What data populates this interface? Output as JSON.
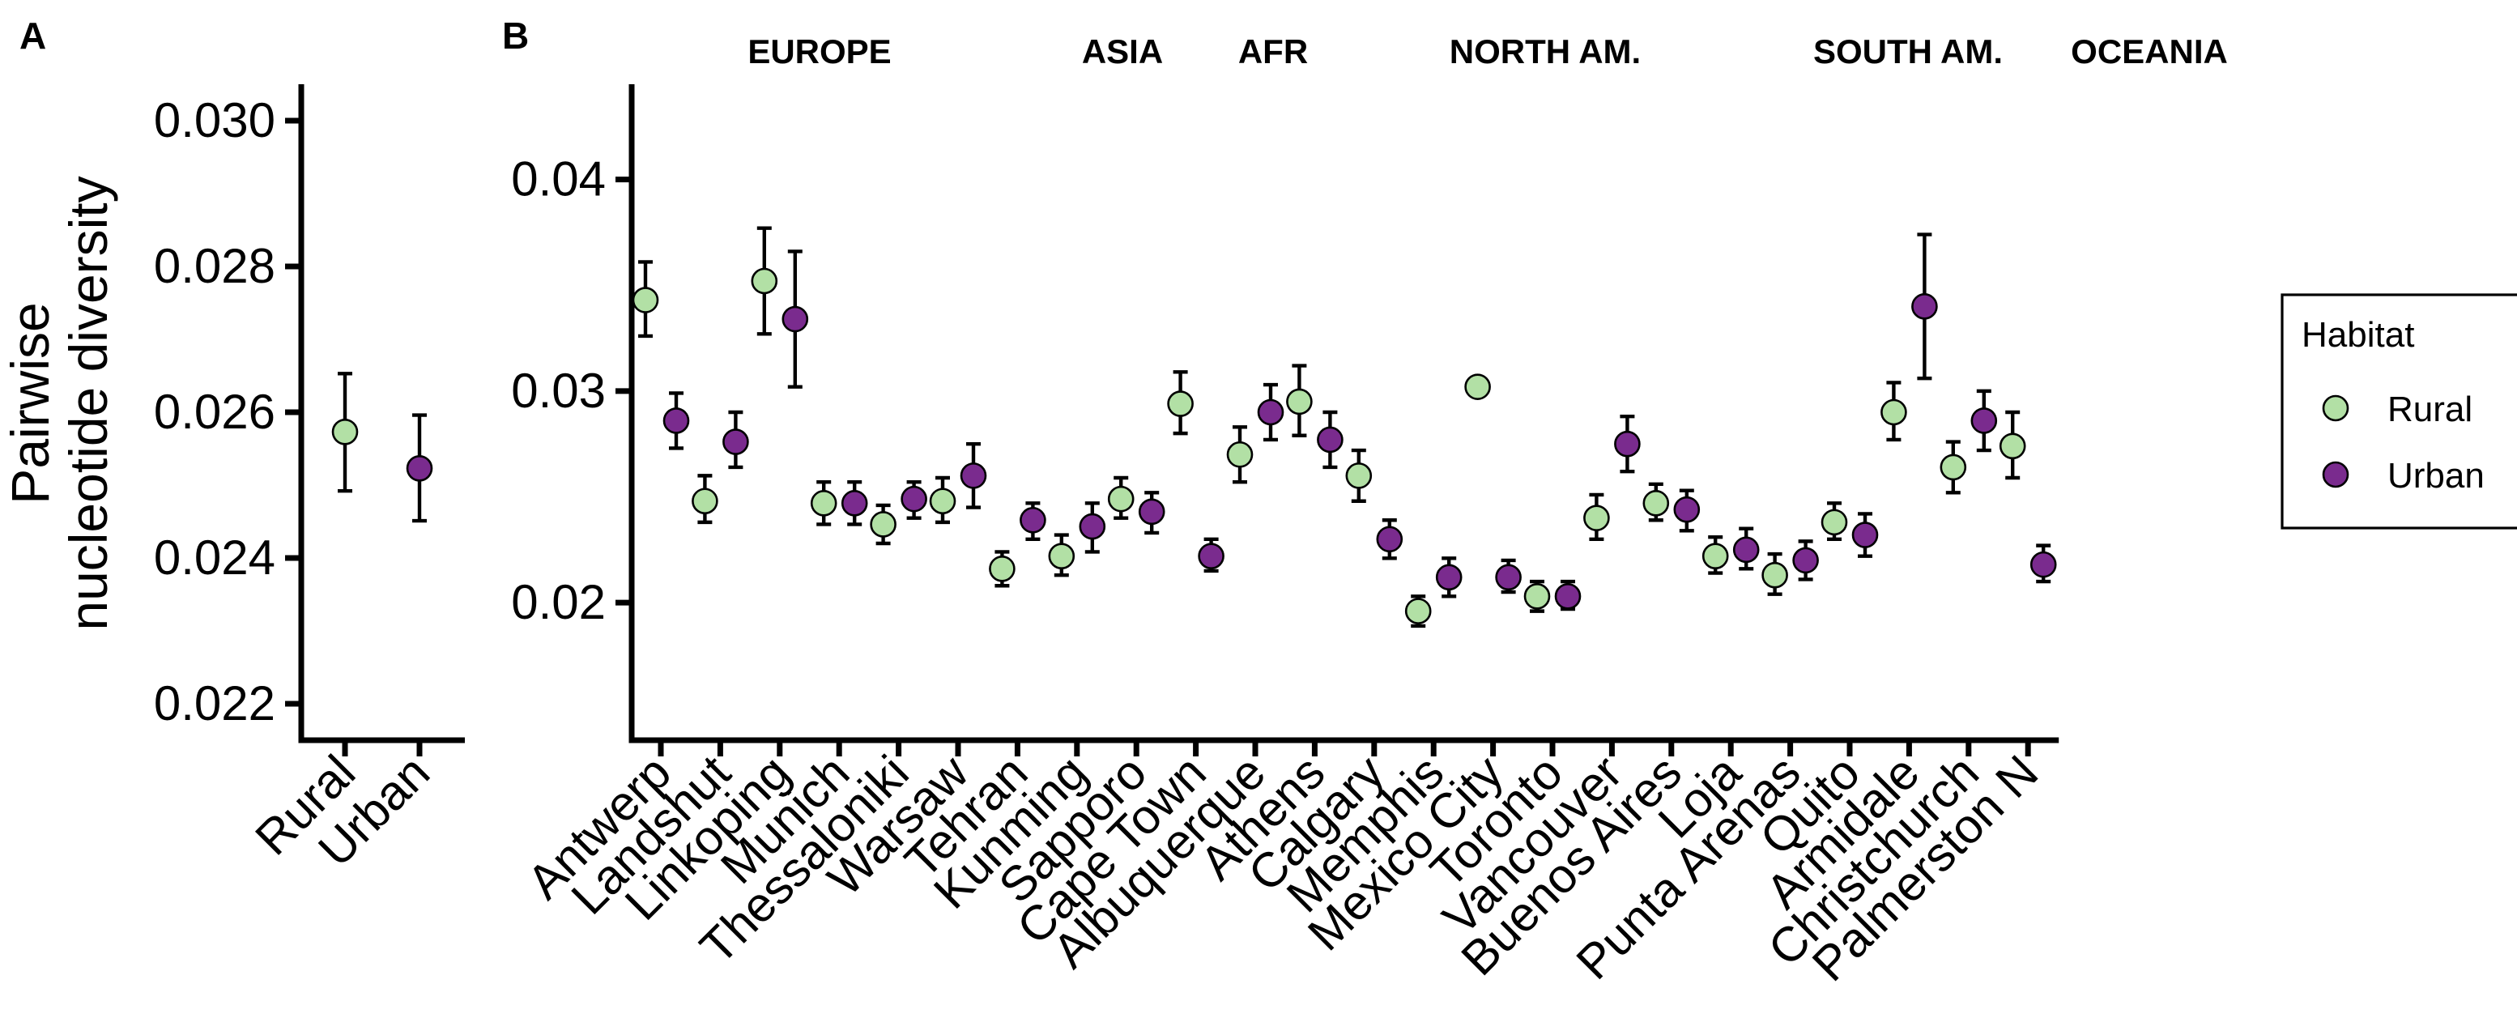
{
  "panels": {
    "a_label": "A",
    "b_label": "B"
  },
  "colors": {
    "rural": "#b2e0a5",
    "urban": "#7a2b8e",
    "axis": "#000000"
  },
  "legend": {
    "title": "Habitat",
    "items": [
      "Rural",
      "Urban"
    ]
  },
  "chart_data": [
    {
      "panel": "A",
      "type": "scatter",
      "ylabel": "Pairwise\nnucleotide diversity",
      "ylim": [
        0.0215,
        0.0305
      ],
      "yticks": [
        0.022,
        0.024,
        0.026,
        0.028,
        0.03
      ],
      "ytick_labels": [
        "0.022",
        "0.024",
        "0.026",
        "0.028",
        "0.030"
      ],
      "categories": [
        "Rural",
        "Urban"
      ],
      "points": [
        {
          "x": "Rural",
          "y": 0.02573,
          "lo": 0.02492,
          "hi": 0.02653,
          "habitat": "Rural"
        },
        {
          "x": "Urban",
          "y": 0.02523,
          "lo": 0.02451,
          "hi": 0.02596,
          "habitat": "Urban"
        }
      ]
    },
    {
      "panel": "B",
      "type": "scatter",
      "ylim": [
        0.0135,
        0.0445
      ],
      "yticks": [
        0.02,
        0.03,
        0.04
      ],
      "ytick_labels": [
        "0.02",
        "0.03",
        "0.04"
      ],
      "legend": "right",
      "groups": [
        {
          "name": "EUROPE",
          "cities": [
            {
              "city": "Antwerp",
              "rural": [
                0.0343,
                0.0326,
                0.0361
              ],
              "urban": [
                0.0286,
                0.0273,
                0.0299
              ]
            },
            {
              "city": "Landshut",
              "rural": [
                0.0248,
                0.0238,
                0.026
              ],
              "urban": [
                0.0276,
                0.0264,
                0.029
              ]
            },
            {
              "city": "Linkoping",
              "rural": [
                0.0352,
                0.0327,
                0.0377
              ],
              "urban": [
                0.0334,
                0.0302,
                0.0366
              ]
            },
            {
              "city": "Munich",
              "rural": [
                0.0247,
                0.0237,
                0.0257
              ],
              "urban": [
                0.0247,
                0.0237,
                0.0257
              ]
            },
            {
              "city": "Thessaloniki",
              "rural": [
                0.0237,
                0.0228,
                0.0246
              ],
              "urban": [
                0.0249,
                0.024,
                0.0257
              ]
            },
            {
              "city": "Warsaw",
              "rural": [
                0.0248,
                0.0238,
                0.0259
              ],
              "urban": [
                0.026,
                0.0245,
                0.0275
              ]
            }
          ]
        },
        {
          "name": "ASIA",
          "cities": [
            {
              "city": "Tehran",
              "rural": [
                0.0216,
                0.0208,
                0.0224
              ],
              "urban": [
                0.0239,
                0.023,
                0.0247
              ]
            },
            {
              "city": "Kunming",
              "rural": [
                0.0222,
                0.0213,
                0.0232
              ],
              "urban": [
                0.0236,
                0.0224,
                0.0247
              ]
            },
            {
              "city": "Sapporo",
              "rural": [
                0.0249,
                0.024,
                0.0259
              ],
              "urban": [
                0.0243,
                0.0233,
                0.0252
              ]
            }
          ]
        },
        {
          "name": "AFR",
          "cities": [
            {
              "city": "Cape Town",
              "rural": [
                0.0294,
                0.028,
                0.0309
              ],
              "urban": [
                0.0222,
                0.0215,
                0.023
              ]
            }
          ]
        },
        {
          "name": "NORTH AM.",
          "cities": [
            {
              "city": "Albuquerque",
              "rural": [
                0.027,
                0.0257,
                0.0283
              ],
              "urban": [
                0.029,
                0.0277,
                0.0303
              ]
            },
            {
              "city": "Athens",
              "rural": [
                0.0295,
                0.0279,
                0.0312
              ],
              "urban": [
                0.0277,
                0.0264,
                0.029
              ]
            },
            {
              "city": "Calgary",
              "rural": [
                0.026,
                0.0248,
                0.0272
              ],
              "urban": [
                0.023,
                0.0221,
                0.0239
              ]
            },
            {
              "city": "Memphis",
              "rural": [
                0.0196,
                0.0189,
                0.0203
              ],
              "urban": [
                0.0212,
                0.0203,
                0.0221
              ]
            },
            {
              "city": "Mexico City",
              "rural": [
                0.0302,
                0.0302,
                0.0302
              ],
              "urban": [
                0.0212,
                0.0205,
                0.022
              ]
            },
            {
              "city": "Toronto",
              "rural": [
                0.0203,
                0.0196,
                0.021
              ],
              "urban": [
                0.0203,
                0.0197,
                0.021
              ]
            },
            {
              "city": "Vancouver",
              "rural": [
                0.024,
                0.023,
                0.0251
              ],
              "urban": [
                0.0275,
                0.0262,
                0.0288
              ]
            }
          ]
        },
        {
          "name": "SOUTH AM.",
          "cities": [
            {
              "city": "Buenos Aires",
              "rural": [
                0.0247,
                0.0239,
                0.0256
              ],
              "urban": [
                0.0244,
                0.0234,
                0.0253
              ]
            },
            {
              "city": "Loja",
              "rural": [
                0.0222,
                0.0214,
                0.0231
              ],
              "urban": [
                0.0225,
                0.0216,
                0.0235
              ]
            },
            {
              "city": "Punta Arenas",
              "rural": [
                0.0213,
                0.0204,
                0.0223
              ],
              "urban": [
                0.022,
                0.0211,
                0.0229
              ]
            },
            {
              "city": "Quito",
              "rural": [
                0.0238,
                0.023,
                0.0247
              ],
              "urban": [
                0.0232,
                0.0222,
                0.0242
              ]
            }
          ]
        },
        {
          "name": "OCEANIA",
          "cities": [
            {
              "city": "Armidale",
              "rural": [
                0.029,
                0.0277,
                0.0304
              ],
              "urban": [
                0.034,
                0.0306,
                0.0374
              ]
            },
            {
              "city": "Christchurch",
              "rural": [
                0.0264,
                0.0252,
                0.0276
              ],
              "urban": [
                0.0286,
                0.0272,
                0.03
              ]
            },
            {
              "city": "Palmerston N",
              "rural": [
                0.0274,
                0.0259,
                0.029
              ],
              "urban": [
                0.0218,
                0.021,
                0.0227
              ]
            }
          ]
        }
      ]
    }
  ]
}
